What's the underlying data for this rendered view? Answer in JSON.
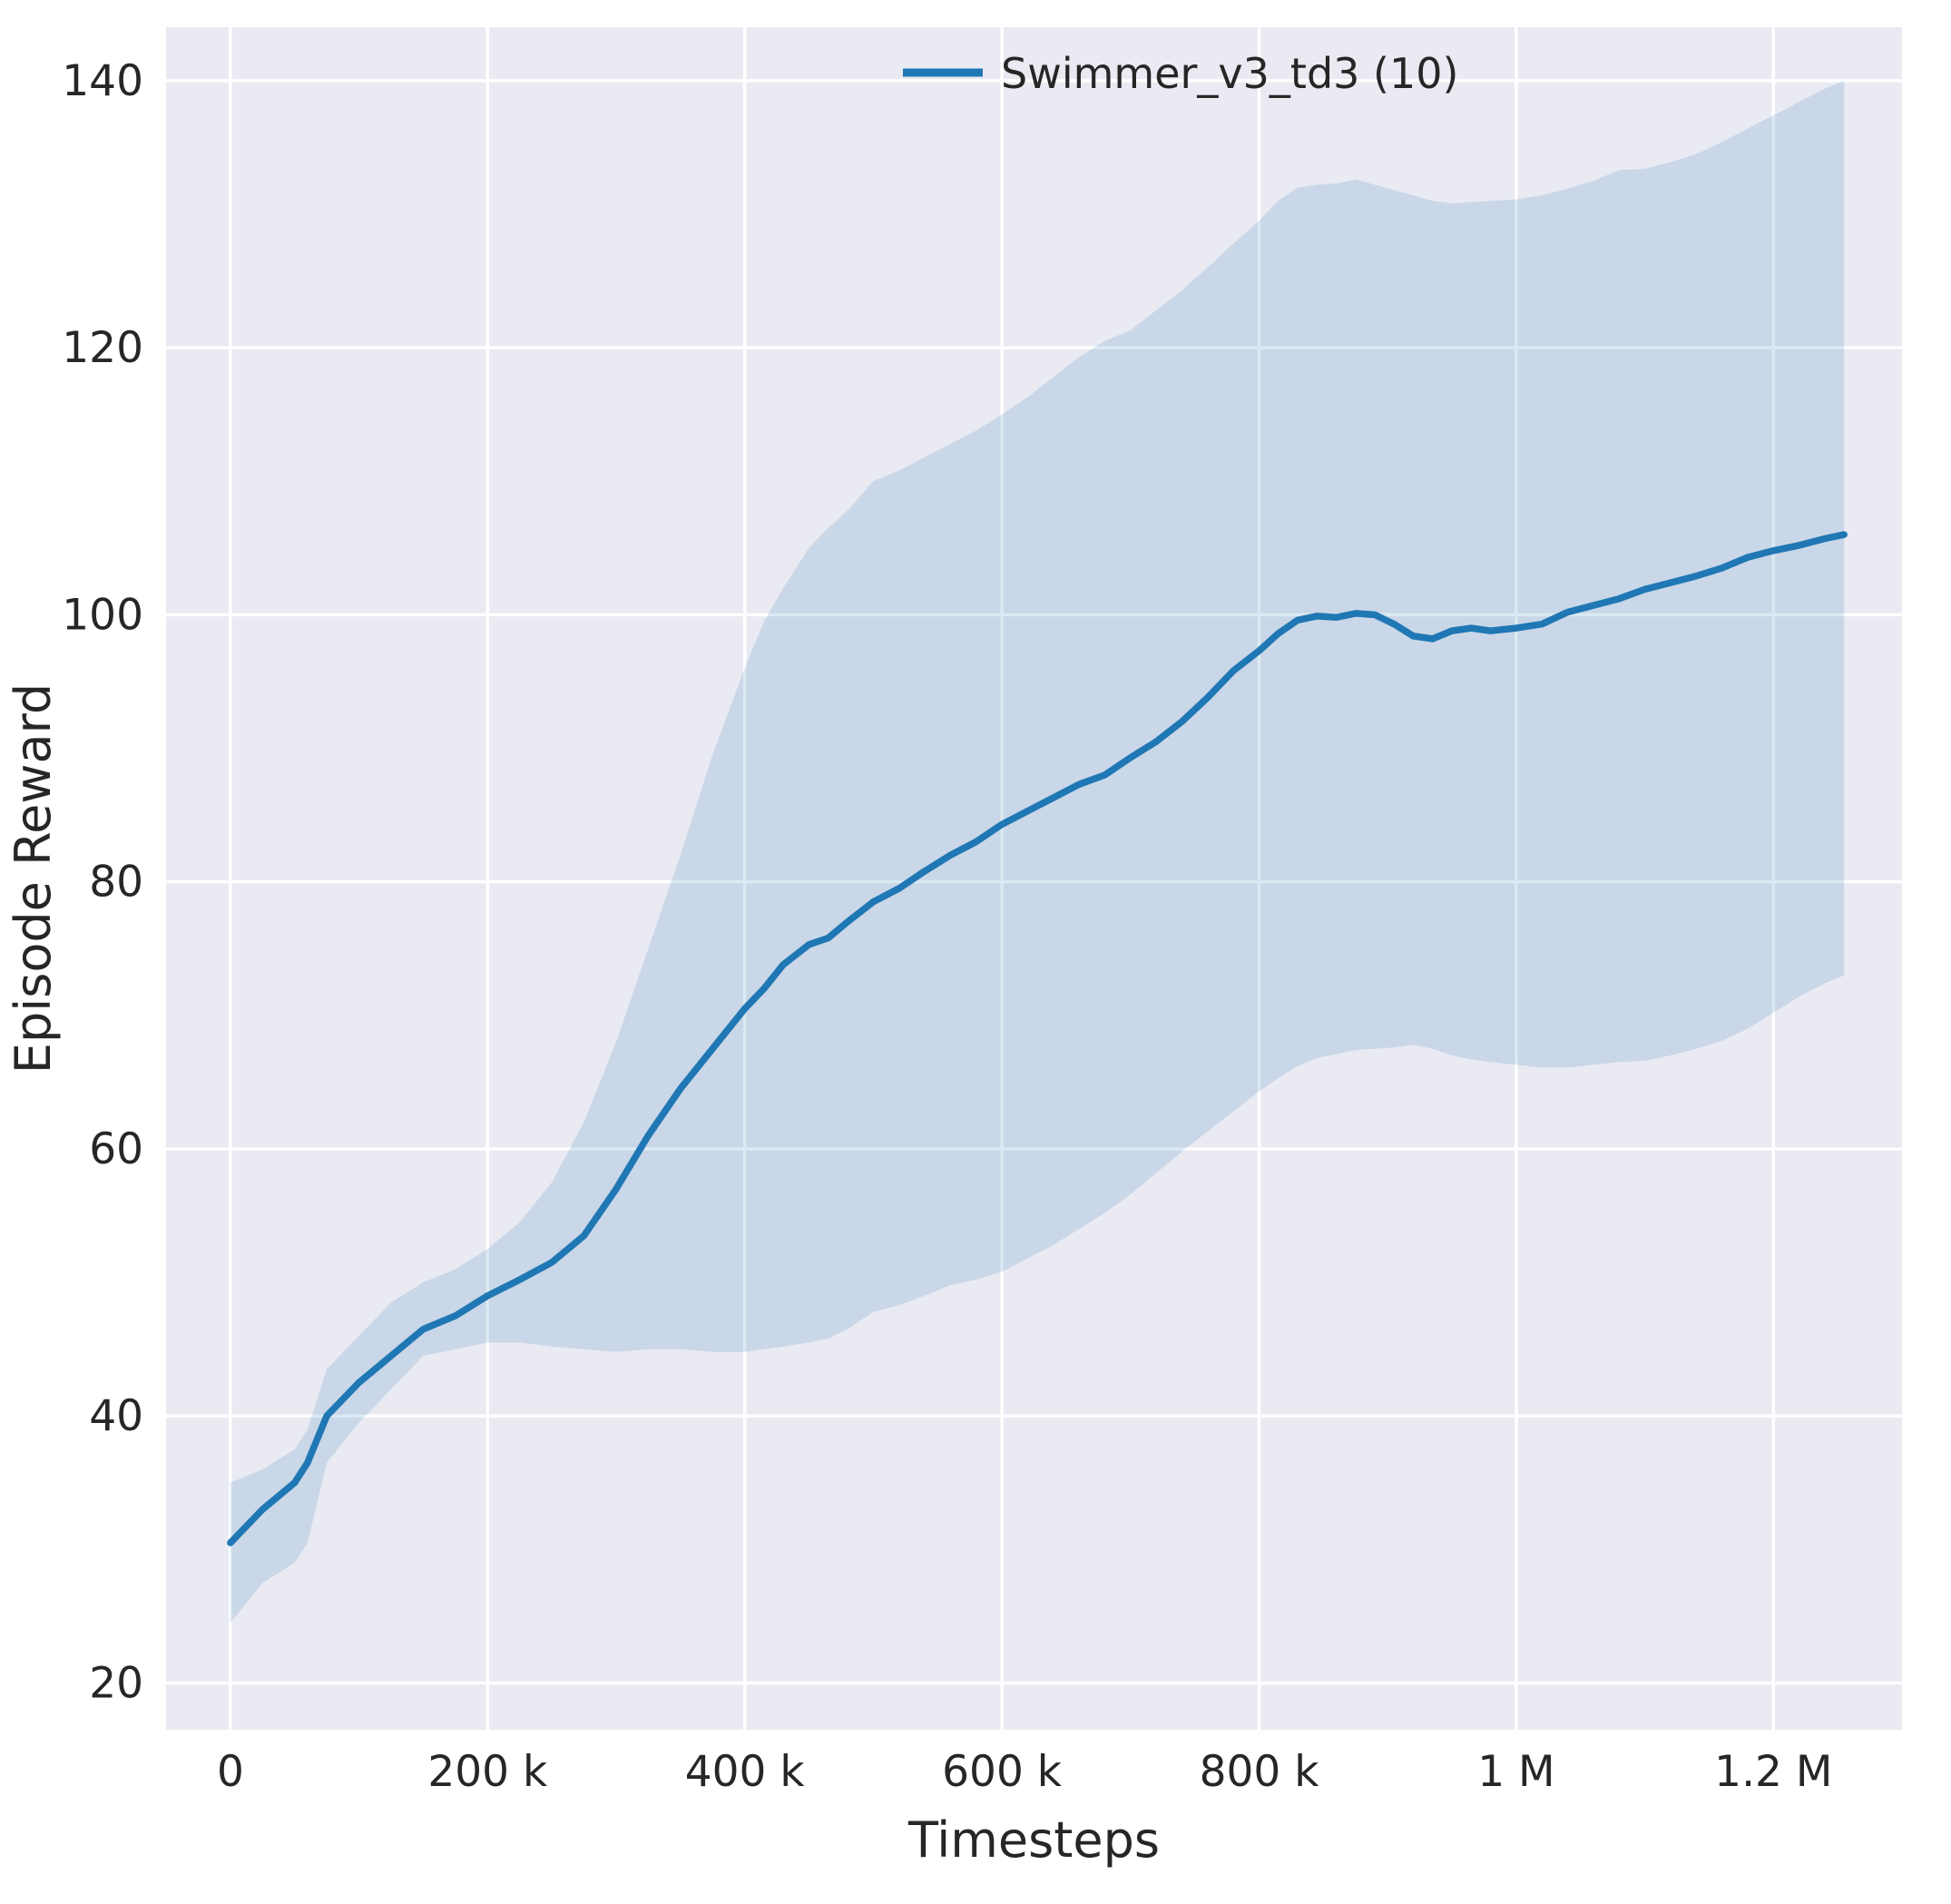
{
  "figure": {
    "background": "#ffffff"
  },
  "chart_data": {
    "type": "line",
    "title": "",
    "xlabel": "Timesteps",
    "ylabel": "Episode Reward",
    "grid": true,
    "legend_position": "upper-center-right",
    "plot_bg": "#eaeaf2",
    "grid_color": "#ffffff",
    "xlim": [
      -50000,
      1300000
    ],
    "ylim": [
      16.5,
      144
    ],
    "x_ticks": [
      {
        "value": 0,
        "label": "0"
      },
      {
        "value": 200000,
        "label": "200 k"
      },
      {
        "value": 400000,
        "label": "400 k"
      },
      {
        "value": 600000,
        "label": "600 k"
      },
      {
        "value": 800000,
        "label": "800 k"
      },
      {
        "value": 1000000,
        "label": "1 M"
      },
      {
        "value": 1200000,
        "label": "1.2 M"
      }
    ],
    "y_ticks": [
      {
        "value": 20,
        "label": "20"
      },
      {
        "value": 40,
        "label": "40"
      },
      {
        "value": 60,
        "label": "60"
      },
      {
        "value": 80,
        "label": "80"
      },
      {
        "value": 100,
        "label": "100"
      },
      {
        "value": 120,
        "label": "120"
      },
      {
        "value": 140,
        "label": "140"
      }
    ],
    "legend": [
      {
        "name": "Swimmer_v3_td3 (10)",
        "color": "#1f77b4"
      }
    ],
    "series": [
      {
        "name": "Swimmer_v3_td3 (10)",
        "color": "#1f77b4",
        "band_opacity": 0.16,
        "x": [
          0,
          25000,
          50000,
          60000,
          75000,
          100000,
          125000,
          150000,
          175000,
          200000,
          225000,
          250000,
          275000,
          300000,
          325000,
          350000,
          375000,
          400000,
          415000,
          430000,
          450000,
          465000,
          480000,
          500000,
          520000,
          540000,
          560000,
          580000,
          600000,
          620000,
          640000,
          660000,
          680000,
          700000,
          720000,
          740000,
          760000,
          780000,
          800000,
          815000,
          830000,
          845000,
          860000,
          875000,
          890000,
          905000,
          920000,
          935000,
          950000,
          965000,
          980000,
          1000000,
          1020000,
          1040000,
          1060000,
          1080000,
          1100000,
          1120000,
          1140000,
          1160000,
          1180000,
          1200000,
          1220000,
          1240000,
          1255000
        ],
        "mean": [
          30.5,
          33,
          35,
          36.5,
          40,
          42.5,
          44.5,
          46.5,
          47.5,
          49,
          50.2,
          51.5,
          53.5,
          57,
          61,
          64.5,
          67.5,
          70.5,
          72,
          73.8,
          75.3,
          75.8,
          77,
          78.5,
          79.5,
          80.8,
          82,
          83,
          84.3,
          85.3,
          86.3,
          87.3,
          88,
          89.3,
          90.5,
          92,
          93.8,
          95.8,
          97.3,
          98.6,
          99.6,
          99.9,
          99.8,
          100.1,
          100,
          99.3,
          98.4,
          98.2,
          98.8,
          99,
          98.8,
          99,
          99.3,
          100.2,
          100.7,
          101.2,
          101.9,
          102.4,
          102.9,
          103.5,
          104.3,
          104.8,
          105.2,
          105.7,
          106
        ],
        "lower": [
          24.5,
          27.5,
          29,
          30.5,
          36.5,
          39.5,
          42,
          44.5,
          45,
          45.5,
          45.5,
          45.2,
          45,
          44.8,
          45,
          45,
          44.8,
          44.8,
          45,
          45.2,
          45.5,
          45.8,
          46.5,
          47.8,
          48.3,
          49,
          49.8,
          50.2,
          50.8,
          51.8,
          52.8,
          54,
          55.2,
          56.6,
          58.2,
          59.8,
          61.3,
          62.8,
          64.3,
          65.3,
          66.2,
          66.8,
          67.1,
          67.4,
          67.5,
          67.6,
          67.8,
          67.5,
          67,
          66.7,
          66.5,
          66.3,
          66.1,
          66.1,
          66.3,
          66.5,
          66.6,
          67,
          67.5,
          68.1,
          69,
          70.2,
          71.4,
          72.4,
          73
        ],
        "upper": [
          35,
          36,
          37.5,
          39,
          43.5,
          46,
          48.5,
          50,
          51,
          52.5,
          54.5,
          57.5,
          62,
          68,
          75,
          82,
          89.5,
          96,
          99.5,
          102,
          105,
          106.5,
          107.8,
          110,
          110.8,
          111.8,
          112.8,
          113.8,
          115,
          116.3,
          117.8,
          119.3,
          120.5,
          121.3,
          122.8,
          124.3,
          126,
          127.8,
          129.5,
          131,
          132,
          132.2,
          132.3,
          132.6,
          132.2,
          131.8,
          131.4,
          131,
          130.8,
          130.9,
          131,
          131.1,
          131.4,
          131.9,
          132.5,
          133.3,
          133.4,
          133.9,
          134.5,
          135.4,
          136.4,
          137.4,
          138.4,
          139.4,
          140
        ]
      }
    ]
  }
}
